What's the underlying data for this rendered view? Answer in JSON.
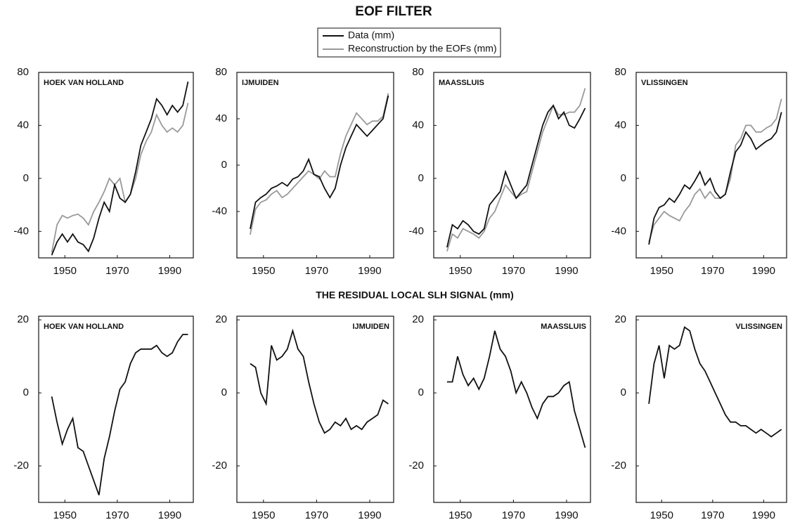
{
  "title": "EOF FILTER",
  "subtitle": "THE RESIDUAL LOCAL SLH SIGNAL (mm)",
  "chart_data": [
    {
      "type": "line",
      "title": "HOEK VAN HOLLAND",
      "label_position": "left",
      "xlim": [
        1940,
        1999
      ],
      "xticks": [
        1950,
        1970,
        1990
      ],
      "ylim": [
        -60,
        80
      ],
      "yticks": [
        -40,
        0,
        40,
        80
      ],
      "x": [
        1945,
        1947,
        1949,
        1951,
        1953,
        1955,
        1957,
        1959,
        1961,
        1963,
        1965,
        1967,
        1969,
        1971,
        1973,
        1975,
        1977,
        1979,
        1981,
        1983,
        1985,
        1987,
        1989,
        1991,
        1993,
        1995,
        1997
      ],
      "series": [
        {
          "name": "Data (mm)",
          "color": "#111111",
          "values": [
            -58,
            -48,
            -42,
            -48,
            -42,
            -48,
            -50,
            -55,
            -45,
            -30,
            -18,
            -25,
            -5,
            -15,
            -18,
            -12,
            5,
            25,
            35,
            45,
            60,
            55,
            48,
            55,
            50,
            55,
            73
          ]
        },
        {
          "name": "Reconstruction by the EOFs (mm)",
          "color": "#999999",
          "values": [
            -56,
            -35,
            -28,
            -30,
            -28,
            -27,
            -30,
            -35,
            -25,
            -18,
            -10,
            0,
            -5,
            0,
            -18,
            -12,
            0,
            18,
            28,
            35,
            48,
            40,
            35,
            38,
            35,
            40,
            57
          ]
        }
      ]
    },
    {
      "type": "line",
      "title": "IJMUIDEN",
      "label_position": "left",
      "xlim": [
        1940,
        1999
      ],
      "xticks": [
        1950,
        1970,
        1990
      ],
      "ylim": [
        -80,
        80
      ],
      "yticks": [
        -40,
        0,
        40,
        80
      ],
      "x": [
        1945,
        1947,
        1949,
        1951,
        1953,
        1955,
        1957,
        1959,
        1961,
        1963,
        1965,
        1967,
        1969,
        1971,
        1973,
        1975,
        1977,
        1979,
        1981,
        1983,
        1985,
        1987,
        1989,
        1991,
        1993,
        1995,
        1997
      ],
      "series": [
        {
          "color": "#111111",
          "values": [
            -55,
            -32,
            -28,
            -25,
            -20,
            -18,
            -15,
            -18,
            -12,
            -10,
            -5,
            5,
            -8,
            -10,
            -20,
            -28,
            -20,
            0,
            15,
            25,
            35,
            30,
            25,
            30,
            35,
            40,
            60
          ]
        },
        {
          "color": "#999999",
          "values": [
            -60,
            -38,
            -32,
            -30,
            -25,
            -22,
            -28,
            -25,
            -20,
            -15,
            -10,
            -5,
            -8,
            -12,
            -5,
            -10,
            -10,
            10,
            25,
            35,
            45,
            40,
            35,
            38,
            38,
            42,
            62
          ]
        }
      ]
    },
    {
      "type": "line",
      "title": "MAASSLUIS",
      "label_position": "left",
      "xlim": [
        1940,
        1999
      ],
      "xticks": [
        1950,
        1970,
        1990
      ],
      "ylim": [
        -60,
        80
      ],
      "yticks": [
        -40,
        0,
        40,
        80
      ],
      "x": [
        1945,
        1947,
        1949,
        1951,
        1953,
        1955,
        1957,
        1959,
        1961,
        1963,
        1965,
        1967,
        1969,
        1971,
        1973,
        1975,
        1977,
        1979,
        1981,
        1983,
        1985,
        1987,
        1989,
        1991,
        1993,
        1995,
        1997
      ],
      "series": [
        {
          "color": "#111111",
          "values": [
            -52,
            -35,
            -38,
            -32,
            -35,
            -40,
            -42,
            -38,
            -20,
            -15,
            -10,
            5,
            -5,
            -15,
            -10,
            -5,
            10,
            25,
            40,
            50,
            55,
            45,
            50,
            40,
            38,
            45,
            53
          ]
        },
        {
          "color": "#999999",
          "values": [
            -55,
            -42,
            -45,
            -38,
            -40,
            -42,
            -45,
            -40,
            -30,
            -25,
            -15,
            -5,
            -10,
            -15,
            -12,
            -10,
            5,
            20,
            35,
            45,
            55,
            48,
            48,
            50,
            50,
            55,
            68
          ]
        }
      ]
    },
    {
      "type": "line",
      "title": "VLISSINGEN",
      "label_position": "left",
      "xlim": [
        1940,
        1999
      ],
      "xticks": [
        1950,
        1970,
        1990
      ],
      "ylim": [
        -60,
        80
      ],
      "yticks": [
        -40,
        0,
        40,
        80
      ],
      "x": [
        1945,
        1947,
        1949,
        1951,
        1953,
        1955,
        1957,
        1959,
        1961,
        1963,
        1965,
        1967,
        1969,
        1971,
        1973,
        1975,
        1977,
        1979,
        1981,
        1983,
        1985,
        1987,
        1989,
        1991,
        1993,
        1995,
        1997
      ],
      "series": [
        {
          "color": "#111111",
          "values": [
            -50,
            -30,
            -22,
            -20,
            -15,
            -18,
            -12,
            -5,
            -8,
            -2,
            5,
            -5,
            0,
            -10,
            -15,
            -12,
            5,
            20,
            25,
            35,
            30,
            22,
            25,
            28,
            30,
            35,
            50
          ]
        },
        {
          "color": "#999999",
          "values": [
            -48,
            -35,
            -30,
            -25,
            -28,
            -30,
            -32,
            -25,
            -20,
            -12,
            -8,
            -15,
            -10,
            -15,
            -15,
            -12,
            0,
            25,
            30,
            40,
            40,
            35,
            35,
            38,
            40,
            45,
            60
          ]
        }
      ]
    },
    {
      "type": "line",
      "title": "HOEK VAN HOLLAND",
      "label_position": "left",
      "xlim": [
        1940,
        1999
      ],
      "xticks": [
        1950,
        1970,
        1990
      ],
      "ylim": [
        -30,
        21
      ],
      "yticks": [
        -20,
        0,
        20
      ],
      "x": [
        1945,
        1947,
        1949,
        1951,
        1953,
        1955,
        1957,
        1959,
        1961,
        1963,
        1965,
        1967,
        1969,
        1971,
        1973,
        1975,
        1977,
        1979,
        1981,
        1983,
        1985,
        1987,
        1989,
        1991,
        1993,
        1995,
        1997
      ],
      "color": "#111111",
      "values": [
        -1,
        -8,
        -14,
        -10,
        -7,
        -15,
        -16,
        -20,
        -24,
        -28,
        -18,
        -12,
        -5,
        1,
        3,
        8,
        11,
        12,
        12,
        12,
        13,
        11,
        10,
        11,
        14,
        16,
        16
      ]
    },
    {
      "type": "line",
      "title": "IJMUIDEN",
      "label_position": "right",
      "xlim": [
        1940,
        1999
      ],
      "xticks": [
        1950,
        1970,
        1990
      ],
      "ylim": [
        -30,
        21
      ],
      "yticks": [
        -20,
        0,
        20
      ],
      "x": [
        1945,
        1947,
        1949,
        1951,
        1953,
        1955,
        1957,
        1959,
        1961,
        1963,
        1965,
        1967,
        1969,
        1971,
        1973,
        1975,
        1977,
        1979,
        1981,
        1983,
        1985,
        1987,
        1989,
        1991,
        1993,
        1995,
        1997
      ],
      "color": "#111111",
      "values": [
        8,
        7,
        0,
        -3,
        13,
        9,
        10,
        12,
        17,
        12,
        10,
        3,
        -3,
        -8,
        -11,
        -10,
        -8,
        -9,
        -7,
        -10,
        -9,
        -10,
        -8,
        -7,
        -6,
        -2,
        -3
      ]
    },
    {
      "type": "line",
      "title": "MAASSLUIS",
      "label_position": "right",
      "xlim": [
        1940,
        1999
      ],
      "xticks": [
        1950,
        1970,
        1990
      ],
      "ylim": [
        -30,
        21
      ],
      "yticks": [
        -20,
        0,
        20
      ],
      "x": [
        1945,
        1947,
        1949,
        1951,
        1953,
        1955,
        1957,
        1959,
        1961,
        1963,
        1965,
        1967,
        1969,
        1971,
        1973,
        1975,
        1977,
        1979,
        1981,
        1983,
        1985,
        1987,
        1989,
        1991,
        1993,
        1995,
        1997
      ],
      "color": "#111111",
      "values": [
        3,
        3,
        10,
        5,
        2,
        4,
        1,
        4,
        10,
        17,
        12,
        10,
        6,
        0,
        3,
        0,
        -4,
        -7,
        -3,
        -1,
        -1,
        0,
        2,
        3,
        -5,
        -10,
        -15
      ]
    },
    {
      "type": "line",
      "title": "VLISSINGEN",
      "label_position": "right",
      "xlim": [
        1940,
        1999
      ],
      "xticks": [
        1950,
        1970,
        1990
      ],
      "ylim": [
        -30,
        21
      ],
      "yticks": [
        -20,
        0,
        20
      ],
      "x": [
        1945,
        1947,
        1949,
        1951,
        1953,
        1955,
        1957,
        1959,
        1961,
        1963,
        1965,
        1967,
        1969,
        1971,
        1973,
        1975,
        1977,
        1979,
        1981,
        1983,
        1985,
        1987,
        1989,
        1991,
        1993,
        1995,
        1997
      ],
      "color": "#111111",
      "values": [
        -3,
        8,
        13,
        4,
        13,
        12,
        13,
        18,
        17,
        12,
        8,
        6,
        3,
        0,
        -3,
        -6,
        -8,
        -8,
        -9,
        -9,
        -10,
        -11,
        -10,
        -11,
        -12,
        -11,
        -10
      ]
    }
  ]
}
